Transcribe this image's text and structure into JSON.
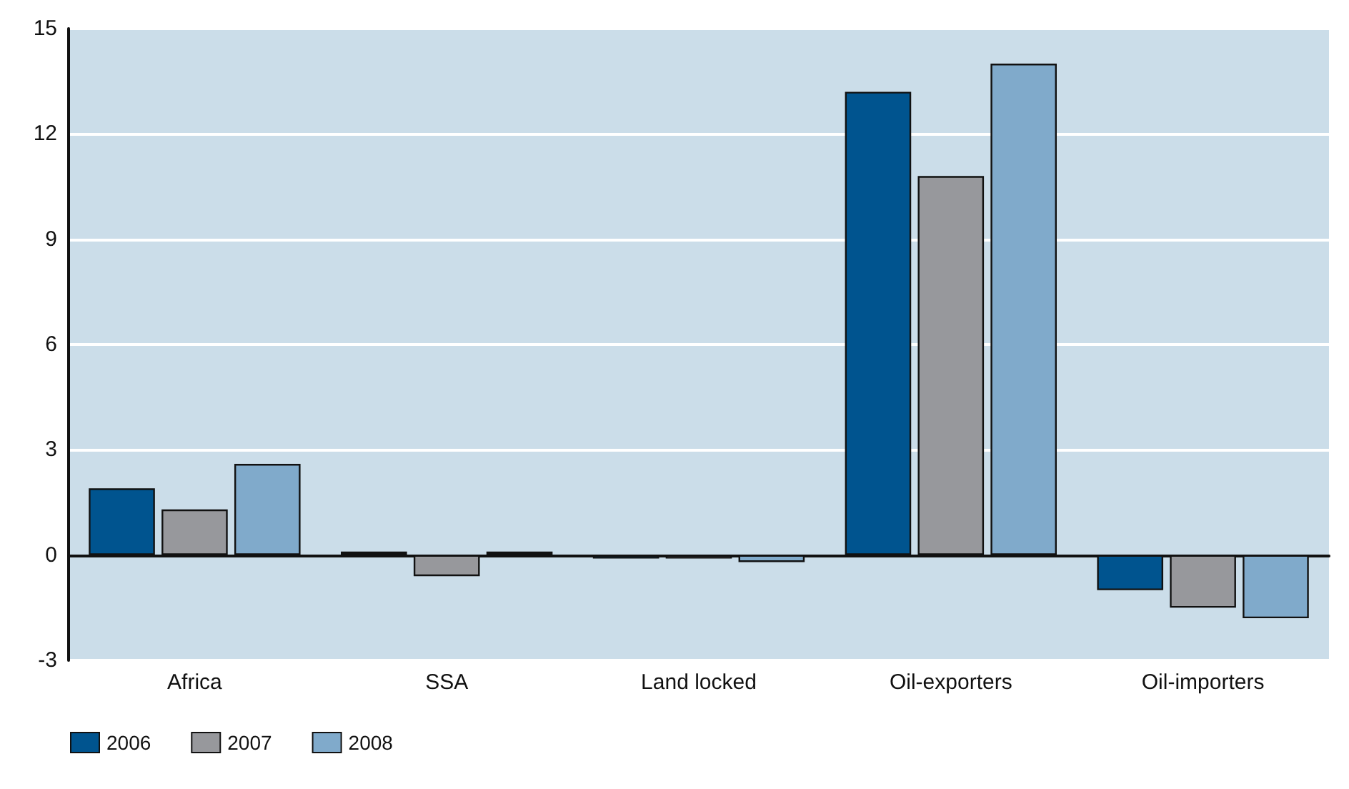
{
  "chart_data": {
    "type": "bar",
    "categories": [
      "Africa",
      "SSA",
      "Land locked",
      "Oil-exporters",
      "Oil-importers"
    ],
    "series": [
      {
        "name": "2006",
        "color": "#00548f",
        "values": [
          1.9,
          0.1,
          -0.1,
          13.2,
          -1.0
        ]
      },
      {
        "name": "2007",
        "color": "#97989c",
        "values": [
          1.3,
          -0.6,
          -0.1,
          10.8,
          -1.5
        ]
      },
      {
        "name": "2008",
        "color": "#80aacb",
        "values": [
          2.6,
          0.1,
          -0.2,
          14.0,
          -1.8
        ]
      }
    ],
    "ylim": [
      -3,
      15
    ],
    "yticks": [
      -3,
      0,
      3,
      6,
      9,
      12,
      15
    ],
    "grid": "y",
    "legend": "bottom left"
  }
}
